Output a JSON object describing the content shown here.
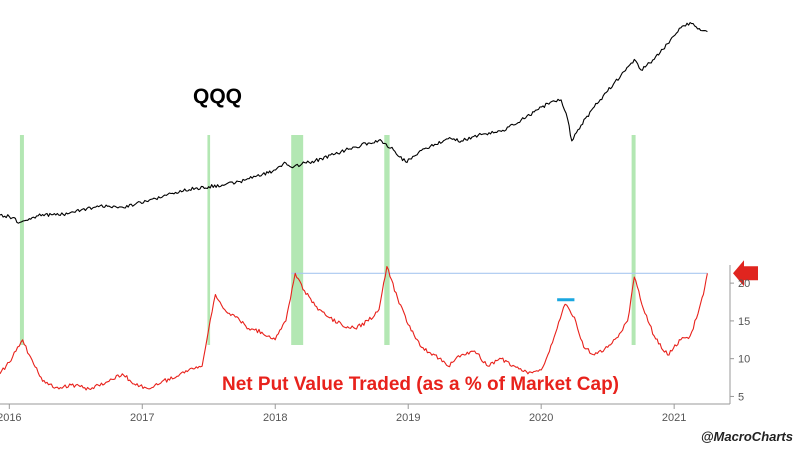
{
  "chart_data": {
    "type": "line",
    "title": "QQQ",
    "subtitle": "Net Put Value Traded (as a % of Market Cap)",
    "credit": "@MacroCharts",
    "colors": {
      "qqq": "#000000",
      "put_ratio": "#e8221c",
      "highlight_band": "#a6e3a6",
      "reference_line": "#a9c8f0",
      "short_marker": "#1aa7e0",
      "arrow": "#e0251f"
    },
    "x_axis": {
      "ticks": [
        "2016",
        "2017",
        "2018",
        "2019",
        "2020",
        "2021"
      ],
      "range": [
        2015.93,
        2021.42
      ]
    },
    "y_axis_right": {
      "ticks": [
        5,
        10,
        15,
        20
      ],
      "range": [
        4,
        22.4
      ]
    },
    "series": [
      {
        "key": "qqq",
        "points": [
          [
            2015.93,
            1.39
          ],
          [
            2016.0,
            1.36
          ],
          [
            2016.08,
            1.25
          ],
          [
            2016.15,
            1.32
          ],
          [
            2016.25,
            1.4
          ],
          [
            2016.35,
            1.39
          ],
          [
            2016.45,
            1.42
          ],
          [
            2016.55,
            1.5
          ],
          [
            2016.65,
            1.54
          ],
          [
            2016.75,
            1.56
          ],
          [
            2016.85,
            1.54
          ],
          [
            2016.95,
            1.6
          ],
          [
            2017.1,
            1.7
          ],
          [
            2017.25,
            1.82
          ],
          [
            2017.4,
            1.9
          ],
          [
            2017.5,
            1.93
          ],
          [
            2017.6,
            1.96
          ],
          [
            2017.7,
            2.0
          ],
          [
            2017.85,
            2.12
          ],
          [
            2017.98,
            2.22
          ],
          [
            2018.08,
            2.38
          ],
          [
            2018.12,
            2.3
          ],
          [
            2018.2,
            2.36
          ],
          [
            2018.3,
            2.42
          ],
          [
            2018.45,
            2.55
          ],
          [
            2018.55,
            2.64
          ],
          [
            2018.7,
            2.76
          ],
          [
            2018.8,
            2.8
          ],
          [
            2018.9,
            2.6
          ],
          [
            2018.98,
            2.4
          ],
          [
            2019.1,
            2.62
          ],
          [
            2019.3,
            2.84
          ],
          [
            2019.4,
            2.8
          ],
          [
            2019.55,
            2.92
          ],
          [
            2019.7,
            2.98
          ],
          [
            2019.85,
            3.2
          ],
          [
            2019.98,
            3.4
          ],
          [
            2020.08,
            3.55
          ],
          [
            2020.15,
            3.58
          ],
          [
            2020.2,
            3.2
          ],
          [
            2020.23,
            2.8
          ],
          [
            2020.3,
            3.1
          ],
          [
            2020.4,
            3.45
          ],
          [
            2020.5,
            3.75
          ],
          [
            2020.6,
            4.05
          ],
          [
            2020.7,
            4.35
          ],
          [
            2020.75,
            4.15
          ],
          [
            2020.85,
            4.35
          ],
          [
            2020.95,
            4.65
          ],
          [
            2021.05,
            4.95
          ],
          [
            2021.12,
            5.05
          ],
          [
            2021.2,
            4.9
          ],
          [
            2021.25,
            4.88
          ]
        ]
      },
      {
        "key": "put_ratio",
        "name": "Net Put Value Traded (as a % of Market Cap)",
        "points": [
          [
            2015.93,
            8.0
          ],
          [
            2016.0,
            9.5
          ],
          [
            2016.05,
            11.0
          ],
          [
            2016.1,
            12.5
          ],
          [
            2016.15,
            10.5
          ],
          [
            2016.25,
            7.0
          ],
          [
            2016.35,
            6.2
          ],
          [
            2016.5,
            6.5
          ],
          [
            2016.6,
            6.0
          ],
          [
            2016.75,
            7.0
          ],
          [
            2016.85,
            8.0
          ],
          [
            2016.95,
            6.5
          ],
          [
            2017.05,
            6.0
          ],
          [
            2017.15,
            7.0
          ],
          [
            2017.25,
            7.5
          ],
          [
            2017.35,
            8.5
          ],
          [
            2017.45,
            9.0
          ],
          [
            2017.5,
            14.0
          ],
          [
            2017.55,
            18.5
          ],
          [
            2017.62,
            16.5
          ],
          [
            2017.7,
            15.5
          ],
          [
            2017.8,
            14.0
          ],
          [
            2017.9,
            13.5
          ],
          [
            2018.0,
            12.5
          ],
          [
            2018.08,
            15.0
          ],
          [
            2018.15,
            21.3
          ],
          [
            2018.22,
            19.0
          ],
          [
            2018.3,
            17.0
          ],
          [
            2018.4,
            15.5
          ],
          [
            2018.5,
            14.5
          ],
          [
            2018.6,
            14.0
          ],
          [
            2018.7,
            15.0
          ],
          [
            2018.78,
            16.5
          ],
          [
            2018.84,
            22.2
          ],
          [
            2018.92,
            18.0
          ],
          [
            2019.0,
            14.5
          ],
          [
            2019.1,
            11.5
          ],
          [
            2019.2,
            10.5
          ],
          [
            2019.3,
            9.0
          ],
          [
            2019.4,
            10.5
          ],
          [
            2019.5,
            11.0
          ],
          [
            2019.6,
            9.0
          ],
          [
            2019.7,
            10.0
          ],
          [
            2019.8,
            9.0
          ],
          [
            2019.9,
            8.0
          ],
          [
            2020.0,
            8.5
          ],
          [
            2020.05,
            10.5
          ],
          [
            2020.12,
            14.0
          ],
          [
            2020.18,
            17.2
          ],
          [
            2020.25,
            15.5
          ],
          [
            2020.32,
            11.5
          ],
          [
            2020.4,
            10.5
          ],
          [
            2020.5,
            11.5
          ],
          [
            2020.6,
            13.5
          ],
          [
            2020.65,
            15.0
          ],
          [
            2020.7,
            20.8
          ],
          [
            2020.78,
            16.0
          ],
          [
            2020.85,
            13.0
          ],
          [
            2020.95,
            10.5
          ],
          [
            2021.05,
            12.5
          ],
          [
            2021.12,
            13.0
          ],
          [
            2021.18,
            16.0
          ],
          [
            2021.22,
            18.5
          ],
          [
            2021.25,
            21.3
          ]
        ]
      }
    ],
    "highlight_bands": [
      [
        2016.08,
        2016.11
      ],
      [
        2017.49,
        2017.51
      ],
      [
        2018.12,
        2018.21
      ],
      [
        2018.82,
        2018.86
      ],
      [
        2020.68,
        2020.71
      ]
    ],
    "reference_line": {
      "value": 21.3,
      "from": 2018.12,
      "to": 2021.25
    },
    "short_marker": {
      "value": 17.8,
      "from": 2020.12,
      "to": 2020.25
    },
    "arrow_marker": {
      "value": 21.3
    },
    "grid": false
  }
}
